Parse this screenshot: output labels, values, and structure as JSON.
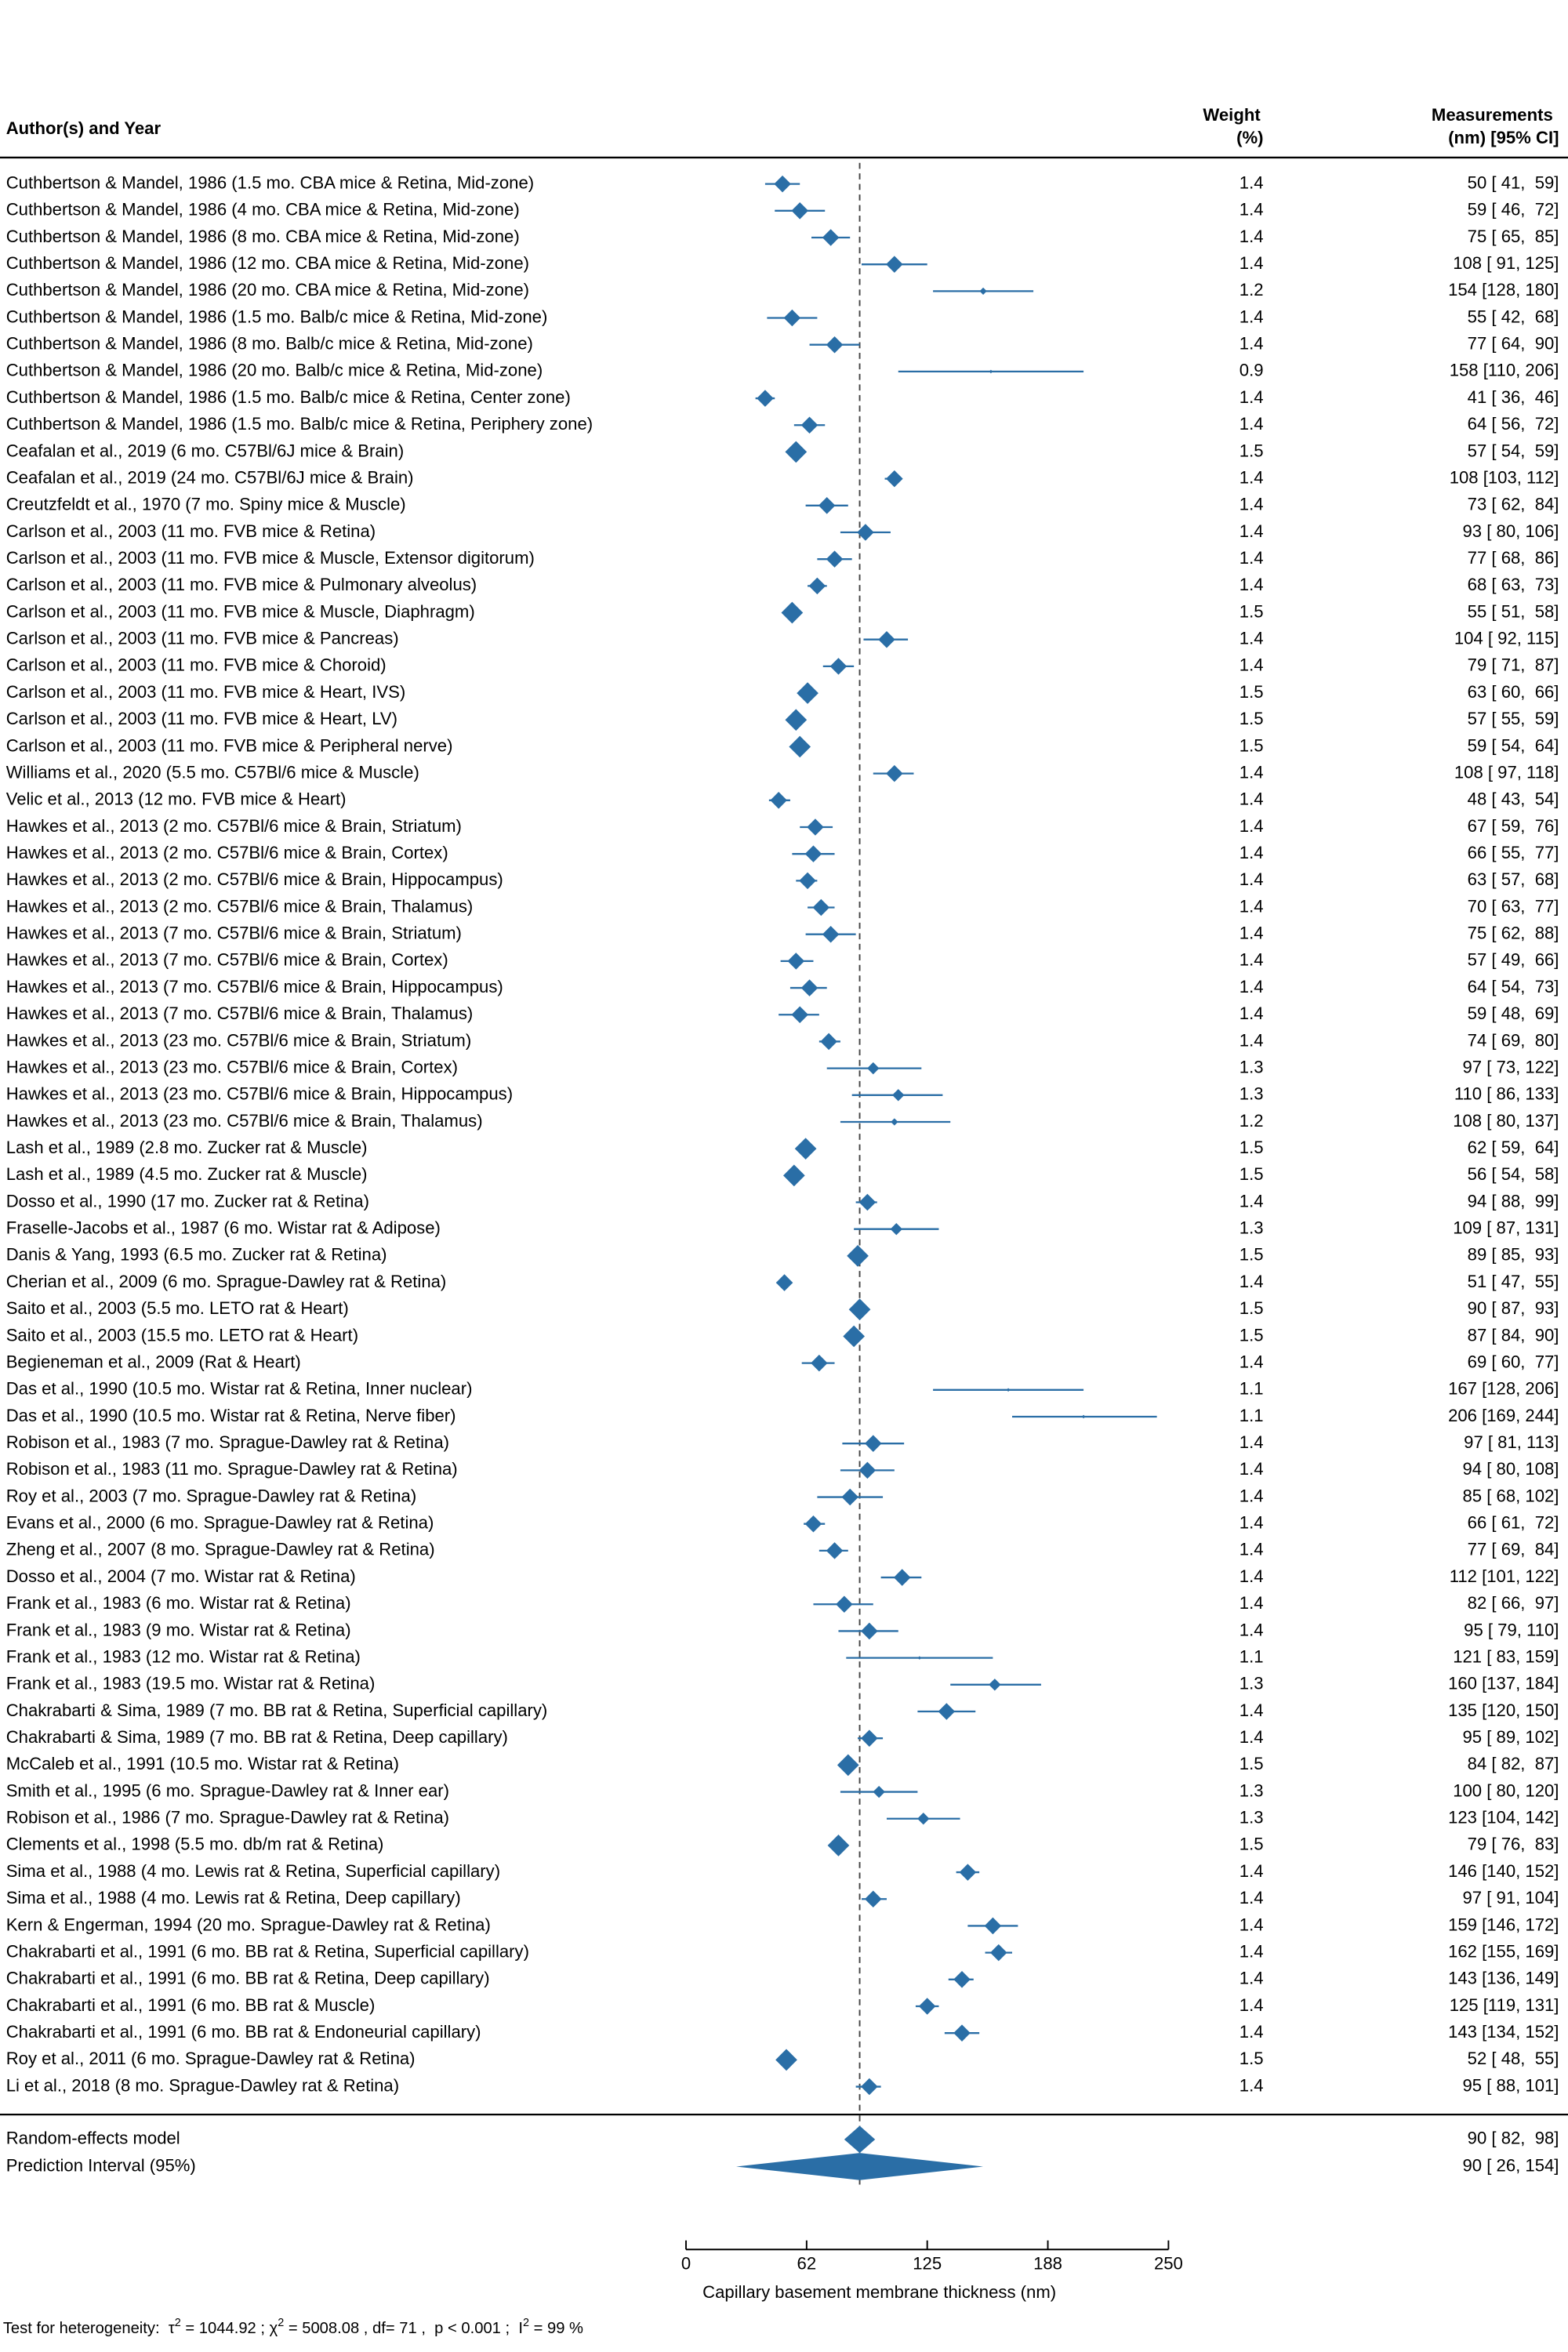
{
  "chart_data": {
    "type": "forest",
    "header_study": "Author(s) and Year",
    "header_weight": [
      "Weight",
      "(%)"
    ],
    "header_measure": [
      "Measurements",
      "(nm) [95% CI]"
    ],
    "color": "#2a6ea6",
    "studies": [
      "Cuthbertson & Mandel, 1986 (1.5 mo. CBA mice & Retina, Mid-zone)",
      "Cuthbertson & Mandel, 1986 (4 mo. CBA mice & Retina, Mid-zone)",
      "Cuthbertson & Mandel, 1986 (8 mo. CBA mice & Retina, Mid-zone)",
      "Cuthbertson & Mandel, 1986 (12 mo. CBA mice & Retina, Mid-zone)",
      "Cuthbertson & Mandel, 1986 (20 mo. CBA mice & Retina, Mid-zone)",
      "Cuthbertson & Mandel, 1986 (1.5 mo. Balb/c mice & Retina, Mid-zone)",
      "Cuthbertson & Mandel, 1986 (8 mo. Balb/c mice & Retina, Mid-zone)",
      "Cuthbertson & Mandel, 1986 (20 mo. Balb/c mice & Retina, Mid-zone)",
      "Cuthbertson & Mandel, 1986 (1.5 mo. Balb/c mice & Retina, Center zone)",
      "Cuthbertson & Mandel, 1986 (1.5 mo. Balb/c mice & Retina, Periphery zone)",
      "Ceafalan et al., 2019 (6 mo. C57Bl/6J mice & Brain)",
      "Ceafalan et al., 2019 (24 mo. C57Bl/6J mice & Brain)",
      "Creutzfeldt et al., 1970 (7 mo. Spiny mice & Muscle)",
      "Carlson et al., 2003 (11 mo. FVB mice & Retina)",
      "Carlson et al., 2003 (11 mo. FVB mice & Muscle, Extensor digitorum)",
      "Carlson et al., 2003 (11 mo. FVB mice & Pulmonary alveolus)",
      "Carlson et al., 2003 (11 mo. FVB mice & Muscle, Diaphragm)",
      "Carlson et al., 2003 (11 mo. FVB mice & Pancreas)",
      "Carlson et al., 2003 (11 mo. FVB mice & Choroid)",
      "Carlson et al., 2003 (11 mo. FVB mice & Heart, IVS)",
      "Carlson et al., 2003 (11 mo. FVB mice & Heart, LV)",
      "Carlson et al., 2003 (11 mo. FVB mice & Peripheral nerve)",
      "Williams et al., 2020 (5.5 mo. C57Bl/6 mice & Muscle)",
      "Velic et al., 2013 (12 mo. FVB mice & Heart)",
      "Hawkes et al., 2013 (2 mo. C57Bl/6 mice & Brain, Striatum)",
      "Hawkes et al., 2013 (2 mo. C57Bl/6 mice & Brain, Cortex)",
      "Hawkes et al., 2013 (2 mo. C57Bl/6 mice & Brain, Hippocampus)",
      "Hawkes et al., 2013 (2 mo. C57Bl/6 mice & Brain, Thalamus)",
      "Hawkes et al., 2013 (7 mo. C57Bl/6 mice & Brain, Striatum)",
      "Hawkes et al., 2013 (7 mo. C57Bl/6 mice & Brain, Cortex)",
      "Hawkes et al., 2013 (7 mo. C57Bl/6 mice & Brain, Hippocampus)",
      "Hawkes et al., 2013 (7 mo. C57Bl/6 mice & Brain, Thalamus)",
      "Hawkes et al., 2013 (23 mo. C57Bl/6 mice & Brain, Striatum)",
      "Hawkes et al., 2013 (23 mo. C57Bl/6 mice & Brain, Cortex)",
      "Hawkes et al., 2013 (23 mo. C57Bl/6 mice & Brain, Hippocampus)",
      "Hawkes et al., 2013 (23 mo. C57Bl/6 mice & Brain, Thalamus)",
      "Lash et al., 1989 (2.8 mo. Zucker rat & Muscle)",
      "Lash et al., 1989 (4.5 mo. Zucker rat & Muscle)",
      "Dosso et al., 1990 (17 mo. Zucker rat & Retina)",
      "Fraselle-Jacobs et al., 1987 (6 mo. Wistar rat & Adipose)",
      "Danis & Yang, 1993 (6.5 mo. Zucker rat & Retina)",
      "Cherian et al., 2009 (6 mo. Sprague-Dawley rat & Retina)",
      "Saito et al., 2003 (5.5 mo. LETO rat & Heart)",
      "Saito et al., 2003 (15.5 mo. LETO rat & Heart)",
      "Begieneman et al., 2009 (Rat & Heart)",
      "Das et al., 1990 (10.5 mo. Wistar rat & Retina, Inner nuclear)",
      "Das et al., 1990 (10.5 mo. Wistar rat & Retina, Nerve fiber)",
      "Robison et al., 1983 (7 mo. Sprague-Dawley rat & Retina)",
      "Robison et al., 1983 (11 mo. Sprague-Dawley rat & Retina)",
      "Roy et al., 2003 (7 mo. Sprague-Dawley rat & Retina)",
      "Evans et al., 2000 (6 mo. Sprague-Dawley rat & Retina)",
      "Zheng et al., 2007 (8 mo. Sprague-Dawley rat & Retina)",
      "Dosso et al., 2004 (7 mo. Wistar rat & Retina)",
      "Frank et al., 1983 (6 mo. Wistar rat & Retina)",
      "Frank et al., 1983 (9 mo. Wistar rat & Retina)",
      "Frank et al., 1983 (12 mo. Wistar rat & Retina)",
      "Frank et al., 1983 (19.5 mo. Wistar rat & Retina)",
      "Chakrabarti & Sima, 1989 (7 mo. BB rat & Retina, Superficial capillary)",
      "Chakrabarti & Sima, 1989 (7 mo. BB rat & Retina, Deep capillary)",
      "McCaleb et al., 1991 (10.5 mo. Wistar rat & Retina)",
      "Smith et al., 1995 (6 mo. Sprague-Dawley rat & Inner ear)",
      "Robison et al., 1986 (7 mo. Sprague-Dawley rat & Retina)",
      "Clements et al., 1998 (5.5 mo. db/m rat & Retina)",
      "Sima et al., 1988 (4 mo. Lewis rat & Retina, Superficial capillary)",
      "Sima et al., 1988 (4 mo. Lewis rat & Retina, Deep capillary)",
      "Kern & Engerman, 1994 (20 mo. Sprague-Dawley rat & Retina)",
      "Chakrabarti et al., 1991 (6 mo. BB rat & Retina, Superficial capillary)",
      "Chakrabarti et al., 1991 (6 mo. BB rat & Retina, Deep capillary)",
      "Chakrabarti et al., 1991 (6 mo. BB rat & Muscle)",
      "Chakrabarti et al., 1991 (6 mo. BB rat & Endoneurial capillary)",
      "Roy et al., 2011 (6 mo. Sprague-Dawley rat & Retina)",
      "Li et al., 2018 (8 mo. Sprague-Dawley rat & Retina)"
    ],
    "weights": [
      1.4,
      1.4,
      1.4,
      1.4,
      1.2,
      1.4,
      1.4,
      0.9,
      1.4,
      1.4,
      1.5,
      1.4,
      1.4,
      1.4,
      1.4,
      1.4,
      1.5,
      1.4,
      1.4,
      1.5,
      1.5,
      1.5,
      1.4,
      1.4,
      1.4,
      1.4,
      1.4,
      1.4,
      1.4,
      1.4,
      1.4,
      1.4,
      1.4,
      1.3,
      1.3,
      1.2,
      1.5,
      1.5,
      1.4,
      1.3,
      1.5,
      1.4,
      1.5,
      1.5,
      1.4,
      1.1,
      1.1,
      1.4,
      1.4,
      1.4,
      1.4,
      1.4,
      1.4,
      1.4,
      1.4,
      1.1,
      1.3,
      1.4,
      1.4,
      1.5,
      1.3,
      1.3,
      1.5,
      1.4,
      1.4,
      1.4,
      1.4,
      1.4,
      1.4,
      1.4,
      1.5,
      1.4
    ],
    "values": [
      50,
      59,
      75,
      108,
      154,
      55,
      77,
      158,
      41,
      64,
      57,
      108,
      73,
      93,
      77,
      68,
      55,
      104,
      79,
      63,
      57,
      59,
      108,
      48,
      67,
      66,
      63,
      70,
      75,
      57,
      64,
      59,
      74,
      97,
      110,
      108,
      62,
      56,
      94,
      109,
      89,
      51,
      90,
      87,
      69,
      167,
      206,
      97,
      94,
      85,
      66,
      77,
      112,
      82,
      95,
      121,
      160,
      135,
      95,
      84,
      100,
      123,
      79,
      146,
      97,
      159,
      162,
      143,
      125,
      143,
      52,
      95
    ],
    "lower": [
      41,
      46,
      65,
      91,
      128,
      42,
      64,
      110,
      36,
      56,
      54,
      103,
      62,
      80,
      68,
      63,
      51,
      92,
      71,
      60,
      55,
      54,
      97,
      43,
      59,
      55,
      57,
      63,
      62,
      49,
      54,
      48,
      69,
      73,
      86,
      80,
      59,
      54,
      88,
      87,
      85,
      47,
      87,
      84,
      60,
      128,
      169,
      81,
      80,
      68,
      61,
      69,
      101,
      66,
      79,
      83,
      137,
      120,
      89,
      82,
      80,
      104,
      76,
      140,
      91,
      146,
      155,
      136,
      119,
      134,
      48,
      88
    ],
    "upper": [
      59,
      72,
      85,
      125,
      180,
      68,
      90,
      206,
      46,
      72,
      59,
      112,
      84,
      106,
      86,
      73,
      58,
      115,
      87,
      66,
      59,
      64,
      118,
      54,
      76,
      77,
      68,
      77,
      88,
      66,
      73,
      69,
      80,
      122,
      133,
      137,
      64,
      58,
      99,
      131,
      93,
      55,
      93,
      90,
      77,
      206,
      244,
      113,
      108,
      102,
      72,
      84,
      122,
      97,
      110,
      159,
      184,
      150,
      102,
      87,
      120,
      142,
      83,
      152,
      104,
      172,
      169,
      149,
      131,
      152,
      55,
      101
    ],
    "value_labels": [
      "50 [ 41,  59]",
      "59 [ 46,  72]",
      "75 [ 65,  85]",
      "108 [ 91, 125]",
      "154 [128, 180]",
      "55 [ 42,  68]",
      "77 [ 64,  90]",
      "158 [110, 206]",
      "41 [ 36,  46]",
      "64 [ 56,  72]",
      "57 [ 54,  59]",
      "108 [103, 112]",
      "73 [ 62,  84]",
      "93 [ 80, 106]",
      "77 [ 68,  86]",
      "68 [ 63,  73]",
      "55 [ 51,  58]",
      "104 [ 92, 115]",
      "79 [ 71,  87]",
      "63 [ 60,  66]",
      "57 [ 55,  59]",
      "59 [ 54,  64]",
      "108 [ 97, 118]",
      "48 [ 43,  54]",
      "67 [ 59,  76]",
      "66 [ 55,  77]",
      "63 [ 57,  68]",
      "70 [ 63,  77]",
      "75 [ 62,  88]",
      "57 [ 49,  66]",
      "64 [ 54,  73]",
      "59 [ 48,  69]",
      "74 [ 69,  80]",
      "97 [ 73, 122]",
      "110 [ 86, 133]",
      "108 [ 80, 137]",
      "62 [ 59,  64]",
      "56 [ 54,  58]",
      "94 [ 88,  99]",
      "109 [ 87, 131]",
      "89 [ 85,  93]",
      "51 [ 47,  55]",
      "90 [ 87,  93]",
      "87 [ 84,  90]",
      "69 [ 60,  77]",
      "167 [128, 206]",
      "206 [169, 244]",
      "97 [ 81, 113]",
      "94 [ 80, 108]",
      "85 [ 68, 102]",
      "66 [ 61,  72]",
      "77 [ 69,  84]",
      "112 [101, 122]",
      "82 [ 66,  97]",
      "95 [ 79, 110]",
      "121 [ 83, 159]",
      "160 [137, 184]",
      "135 [120, 150]",
      "95 [ 89, 102]",
      "84 [ 82,  87]",
      "100 [ 80, 120]",
      "123 [104, 142]",
      "79 [ 76,  83]",
      "146 [140, 152]",
      "97 [ 91, 104]",
      "159 [146, 172]",
      "162 [155, 169]",
      "143 [136, 149]",
      "125 [119, 131]",
      "143 [134, 152]",
      "52 [ 48,  55]",
      "95 [ 88, 101]"
    ],
    "summary": [
      {
        "label": "Random-effects model",
        "value": 90,
        "lower": 82,
        "upper": 98,
        "value_label": "90 [ 82,  98]"
      },
      {
        "label": "Prediction Interval (95%)",
        "value": 90,
        "lower": 26,
        "upper": 154,
        "value_label": "90 [ 26, 154]"
      }
    ],
    "xlim": [
      0,
      250
    ],
    "xticks": [
      0,
      {
        "value": 62.5,
        "label": "62"
      },
      125,
      {
        "value": 187.5,
        "label": "188"
      },
      250
    ],
    "xlabel": "Capillary basement membrane thickness (nm)",
    "footnote": [
      "Test for heterogeneity:  τ",
      "2",
      " = 1044.92 ; χ",
      "2",
      " = 5008.08 , df= 71 ,  p < 0.001 ;  I",
      "2",
      " = 99 %"
    ]
  }
}
